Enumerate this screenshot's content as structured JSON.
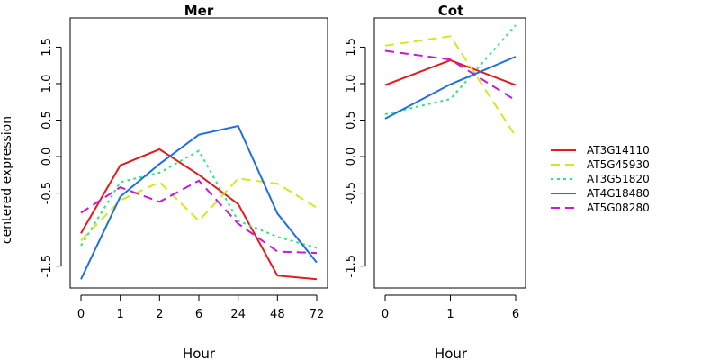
{
  "chart_data": {
    "type": "line",
    "ylabel": "centered expression",
    "legend_position": "right",
    "series_styles": [
      {
        "name": "AT3G14110",
        "color": "#e41a1c",
        "dash": "solid"
      },
      {
        "name": "AT5G45930",
        "color": "#d9e61e",
        "dash": "long-dash"
      },
      {
        "name": "AT3G51820",
        "color": "#2ee87a",
        "dash": "dotted"
      },
      {
        "name": "AT4G18480",
        "color": "#1f6fe0",
        "dash": "solid"
      },
      {
        "name": "AT5G08280",
        "color": "#c51ad9",
        "dash": "long-dash"
      }
    ],
    "panels": [
      {
        "title": "Mer",
        "xlabel": "Hour",
        "categories": [
          "0",
          "1",
          "2",
          "6",
          "24",
          "48",
          "72"
        ],
        "ylim": [
          -1.8,
          1.9
        ],
        "yticks": [
          "-1.5",
          "-0.5",
          "0.0",
          "0.5",
          "1.0",
          "1.5"
        ],
        "ytick_values": [
          -1.5,
          -0.5,
          0.0,
          0.5,
          1.0,
          1.5
        ],
        "series": [
          {
            "name": "AT3G14110",
            "values": [
              -1.05,
              -0.12,
              0.1,
              -0.25,
              -0.65,
              -1.63,
              -1.68
            ]
          },
          {
            "name": "AT5G45930",
            "values": [
              -1.15,
              -0.6,
              -0.35,
              -0.88,
              -0.3,
              -0.37,
              -0.7
            ]
          },
          {
            "name": "AT3G51820",
            "values": [
              -1.22,
              -0.35,
              -0.22,
              0.08,
              -0.88,
              -1.1,
              -1.25
            ]
          },
          {
            "name": "AT4G18480",
            "values": [
              -1.68,
              -0.55,
              -0.1,
              0.3,
              0.42,
              -0.78,
              -1.45
            ]
          },
          {
            "name": "AT5G08280",
            "values": [
              -0.77,
              -0.42,
              -0.62,
              -0.33,
              -0.92,
              -1.3,
              -1.32
            ]
          }
        ]
      },
      {
        "title": "Cot",
        "xlabel": "Hour",
        "categories": [
          "0",
          "1",
          "6"
        ],
        "ylim": [
          -1.8,
          1.9
        ],
        "yticks": [
          "-1.5",
          "-0.5",
          "0.0",
          "0.5",
          "1.0",
          "1.5"
        ],
        "ytick_values": [
          -1.5,
          -0.5,
          0.0,
          0.5,
          1.0,
          1.5
        ],
        "series": [
          {
            "name": "AT3G14110",
            "values": [
              0.98,
              1.32,
              0.98
            ]
          },
          {
            "name": "AT5G45930",
            "values": [
              1.52,
              1.65,
              0.28
            ]
          },
          {
            "name": "AT3G51820",
            "values": [
              0.58,
              0.79,
              1.8
            ]
          },
          {
            "name": "AT4G18480",
            "values": [
              0.52,
              0.99,
              1.37
            ]
          },
          {
            "name": "AT5G08280",
            "values": [
              1.45,
              1.33,
              0.77
            ]
          }
        ]
      }
    ],
    "legend": [
      "AT3G14110",
      "AT5G45930",
      "AT3G51820",
      "AT4G18480",
      "AT5G08280"
    ]
  }
}
